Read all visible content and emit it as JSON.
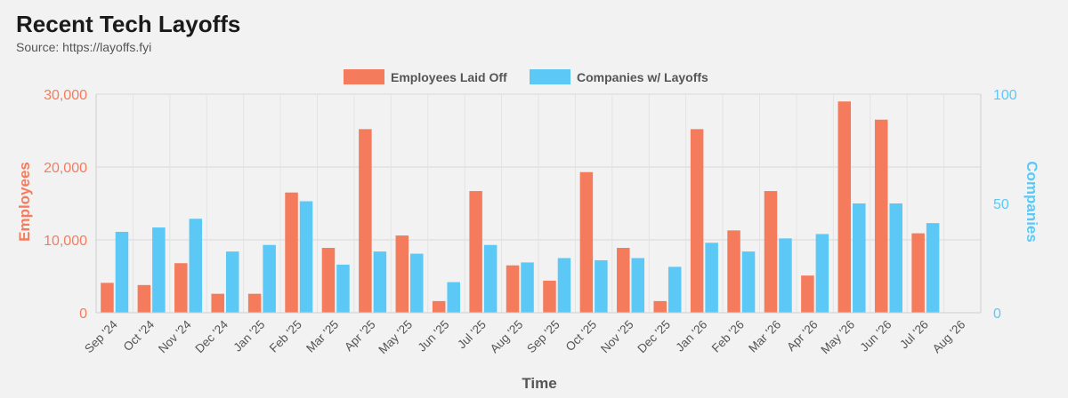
{
  "header": {
    "title": "Recent Tech Layoffs",
    "subtitle": "Source: https://layoffs.fyi"
  },
  "chart_data": {
    "type": "bar",
    "title": "Recent Tech Layoffs",
    "subtitle": "Source: https://layoffs.fyi",
    "xlabel": "Time",
    "ylabel": "Employees",
    "y2label": "Companies",
    "legend_position": "top-center",
    "grid": true,
    "categories": [
      "Sep '24",
      "Oct '24",
      "Nov '24",
      "Dec '24",
      "Jan '25",
      "Feb '25",
      "Mar '25",
      "Apr '25",
      "May '25",
      "Jun '25",
      "Jul '25",
      "Aug '25",
      "Sep '25",
      "Oct '25",
      "Nov '25",
      "Dec '25",
      "Jan '26",
      "Feb '26",
      "Mar '26",
      "Apr '26",
      "May '26",
      "Jun '26",
      "Jul '26",
      "Aug '26"
    ],
    "ylim": [
      0,
      30000
    ],
    "y2lim": [
      0,
      100
    ],
    "yticks": [
      {
        "value": 0,
        "label": "0"
      },
      {
        "value": 10000,
        "label": "10,000"
      },
      {
        "value": 20000,
        "label": "20,000"
      },
      {
        "value": 30000,
        "label": "30,000"
      }
    ],
    "y2ticks": [
      {
        "value": 0,
        "label": "0"
      },
      {
        "value": 50,
        "label": "50"
      },
      {
        "value": 100,
        "label": "100"
      }
    ],
    "series": [
      {
        "name": "Employees Laid Off",
        "axis": "left",
        "color": "#f47c5d",
        "values": [
          4100,
          3800,
          6800,
          2600,
          2600,
          16500,
          8900,
          25200,
          10600,
          1600,
          16700,
          6500,
          4400,
          19300,
          8900,
          1600,
          25200,
          11300,
          16700,
          5100,
          29000,
          26500,
          10900,
          0
        ]
      },
      {
        "name": "Companies w/ Layoffs",
        "axis": "right",
        "color": "#5bc8f5",
        "values": [
          37,
          39,
          43,
          28,
          31,
          51,
          22,
          28,
          27,
          14,
          31,
          23,
          25,
          24,
          25,
          21,
          32,
          28,
          34,
          36,
          50,
          50,
          41,
          0
        ]
      }
    ]
  }
}
